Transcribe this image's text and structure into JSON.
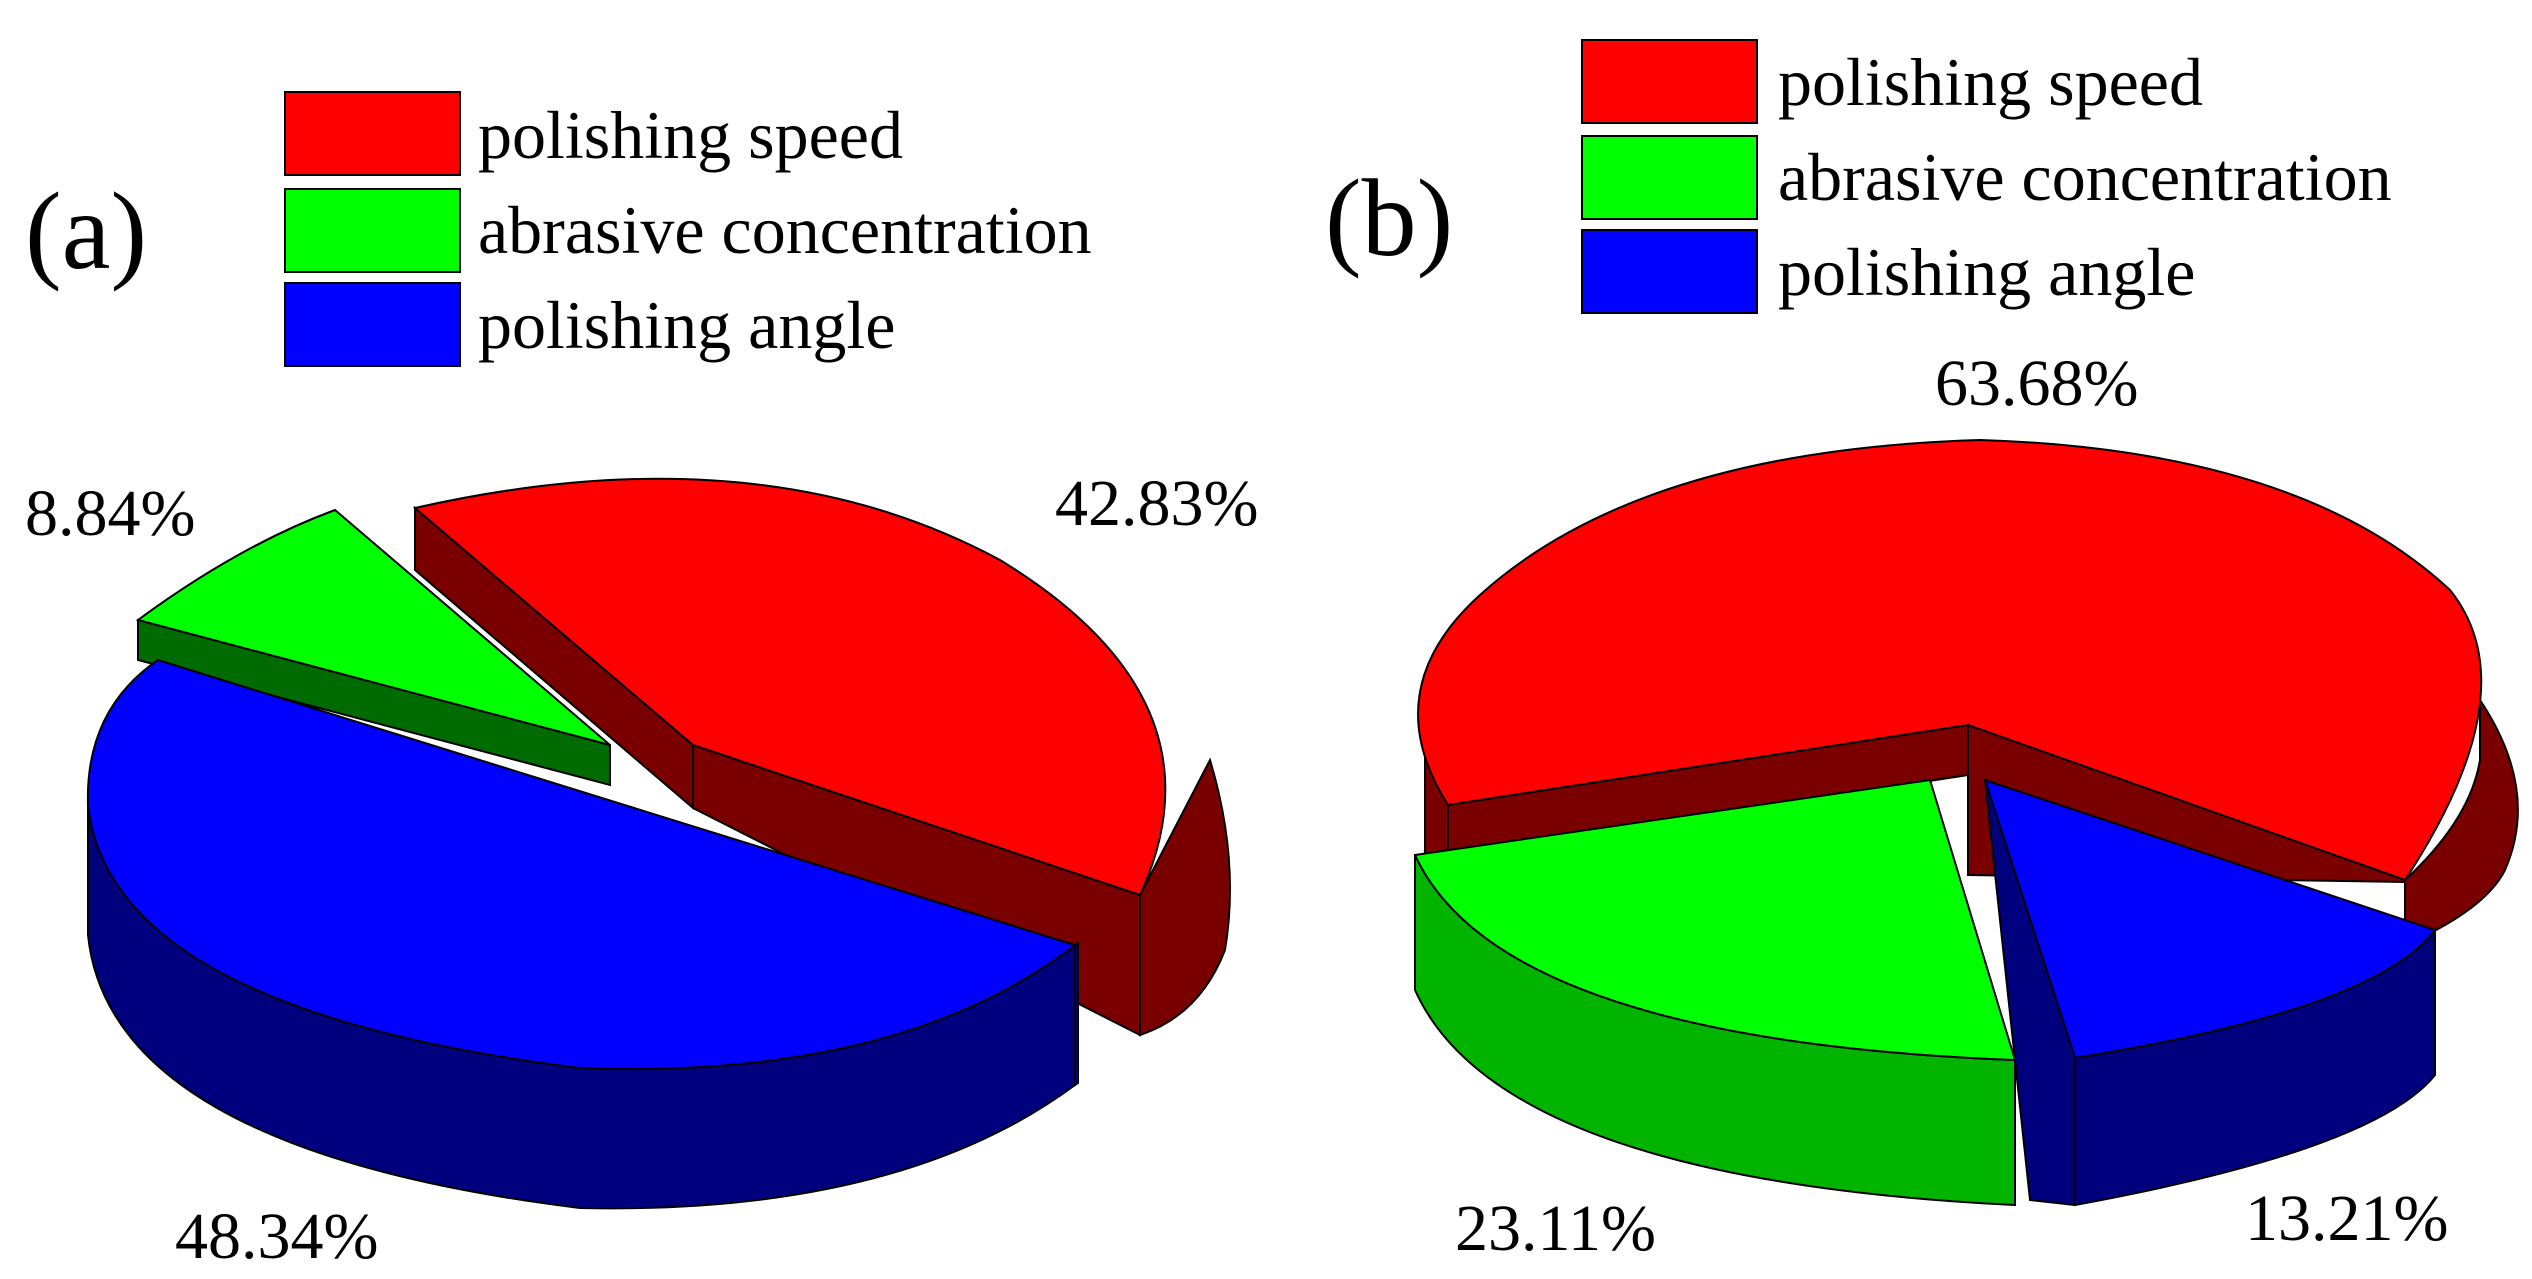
{
  "colors": {
    "red": "#ff0000",
    "red_dark": "#7a0000",
    "green": "#00ff00",
    "green_dark": "#006b00",
    "blue": "#0000ff",
    "blue_dark": "#00007f",
    "outline": "#000000"
  },
  "chart_data": [
    {
      "type": "pie",
      "panel_label": "(a)",
      "legend": [
        "polishing speed",
        "abrasive concentration",
        "polishing angle"
      ],
      "legend_placement": "top",
      "slices": [
        {
          "name": "polishing speed",
          "value": 42.83,
          "label": "42.83%",
          "color": "#ff0000",
          "exploded": true
        },
        {
          "name": "abrasive concentration",
          "value": 8.84,
          "label": "8.84%",
          "color": "#00ff00",
          "exploded": true
        },
        {
          "name": "polishing angle",
          "value": 48.34,
          "label": "48.34%",
          "color": "#0000ff",
          "exploded": false
        }
      ]
    },
    {
      "type": "pie",
      "panel_label": "(b)",
      "legend": [
        "polishing speed",
        "abrasive concentration",
        "polishing angle"
      ],
      "legend_placement": "top",
      "slices": [
        {
          "name": "polishing speed",
          "value": 63.68,
          "label": "63.68%",
          "color": "#ff0000",
          "exploded": false
        },
        {
          "name": "abrasive concentration",
          "value": 23.11,
          "label": "23.11%",
          "color": "#00ff00",
          "exploded": true
        },
        {
          "name": "polishing angle",
          "value": 13.21,
          "label": "13.21%",
          "color": "#0000ff",
          "exploded": true
        }
      ]
    }
  ]
}
